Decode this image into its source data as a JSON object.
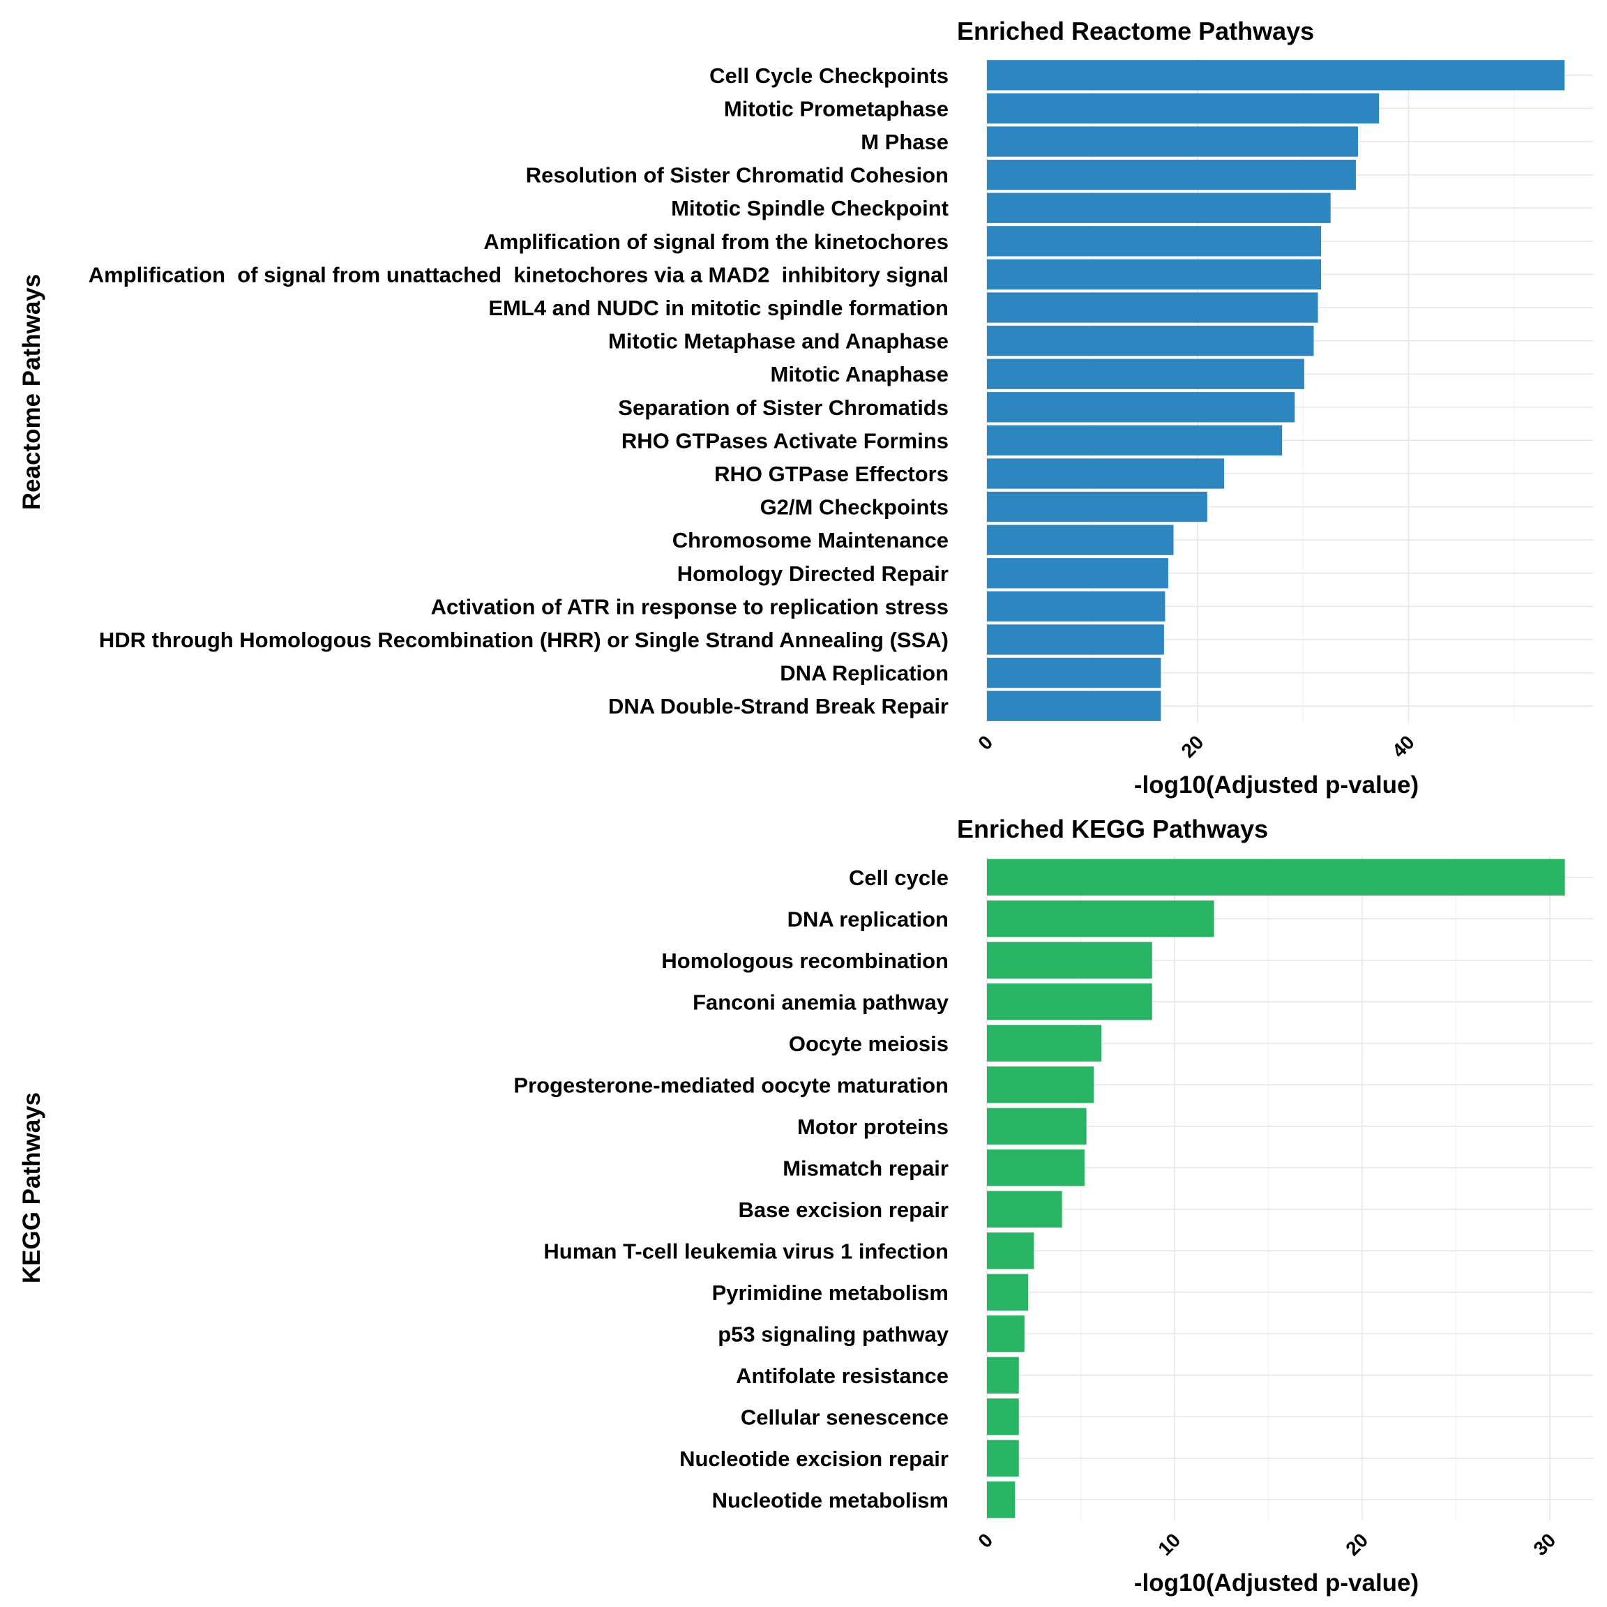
{
  "chart_data": [
    {
      "type": "bar",
      "orientation": "horizontal",
      "title": "Enriched Reactome Pathways",
      "xlabel": "-log10(Adjusted p-value)",
      "ylabel": "Reactome Pathways",
      "color": "#2E86C1",
      "xlim": [
        0,
        57.5
      ],
      "xticks": [
        0,
        20,
        40
      ],
      "xtick_labels": [
        "0",
        "20",
        "40"
      ],
      "grid": true,
      "categories": [
        "Cell Cycle Checkpoints",
        "Mitotic Prometaphase",
        "M Phase",
        "Resolution of Sister Chromatid Cohesion",
        "Mitotic Spindle Checkpoint",
        "Amplification of signal from the kinetochores",
        "Amplification  of signal from unattached  kinetochores via a MAD2  inhibitory signal",
        "EML4 and NUDC in mitotic spindle formation",
        "Mitotic Metaphase and Anaphase",
        "Mitotic Anaphase",
        "Separation of Sister Chromatids",
        "RHO GTPases Activate Formins",
        "RHO GTPase Effectors",
        "G2/M Checkpoints",
        "Chromosome Maintenance",
        "Homology Directed Repair",
        "Activation of ATR in response to replication stress",
        "HDR through Homologous Recombination (HRR) or Single Strand Annealing (SSA)",
        "DNA Replication",
        "DNA Double-Strand Break Repair"
      ],
      "values": [
        54.8,
        37.2,
        35.2,
        35.0,
        32.6,
        31.7,
        31.7,
        31.4,
        31.0,
        30.1,
        29.2,
        28.0,
        22.5,
        20.9,
        17.7,
        17.2,
        16.9,
        16.8,
        16.5,
        16.5
      ]
    },
    {
      "type": "bar",
      "orientation": "horizontal",
      "title": "Enriched KEGG Pathways",
      "xlabel": "-log10(Adjusted p-value)",
      "ylabel": "KEGG Pathways",
      "color": "#28B463",
      "xlim": [
        0,
        32.3
      ],
      "xticks": [
        0,
        10,
        20,
        30
      ],
      "xtick_labels": [
        "0",
        "10",
        "20",
        "30"
      ],
      "grid": true,
      "categories": [
        "Cell cycle",
        "DNA replication",
        "Homologous recombination",
        "Fanconi anemia pathway",
        "Oocyte meiosis",
        "Progesterone-mediated oocyte maturation",
        "Motor proteins",
        "Mismatch repair",
        "Base excision repair",
        "Human T-cell leukemia virus 1 infection",
        "Pyrimidine metabolism",
        "p53 signaling pathway",
        "Antifolate resistance",
        "Cellular senescence",
        "Nucleotide excision repair",
        "Nucleotide metabolism"
      ],
      "values": [
        30.8,
        12.1,
        8.8,
        8.8,
        6.1,
        5.7,
        5.3,
        5.2,
        4.0,
        2.5,
        2.2,
        2.0,
        1.7,
        1.7,
        1.7,
        1.5
      ]
    }
  ]
}
